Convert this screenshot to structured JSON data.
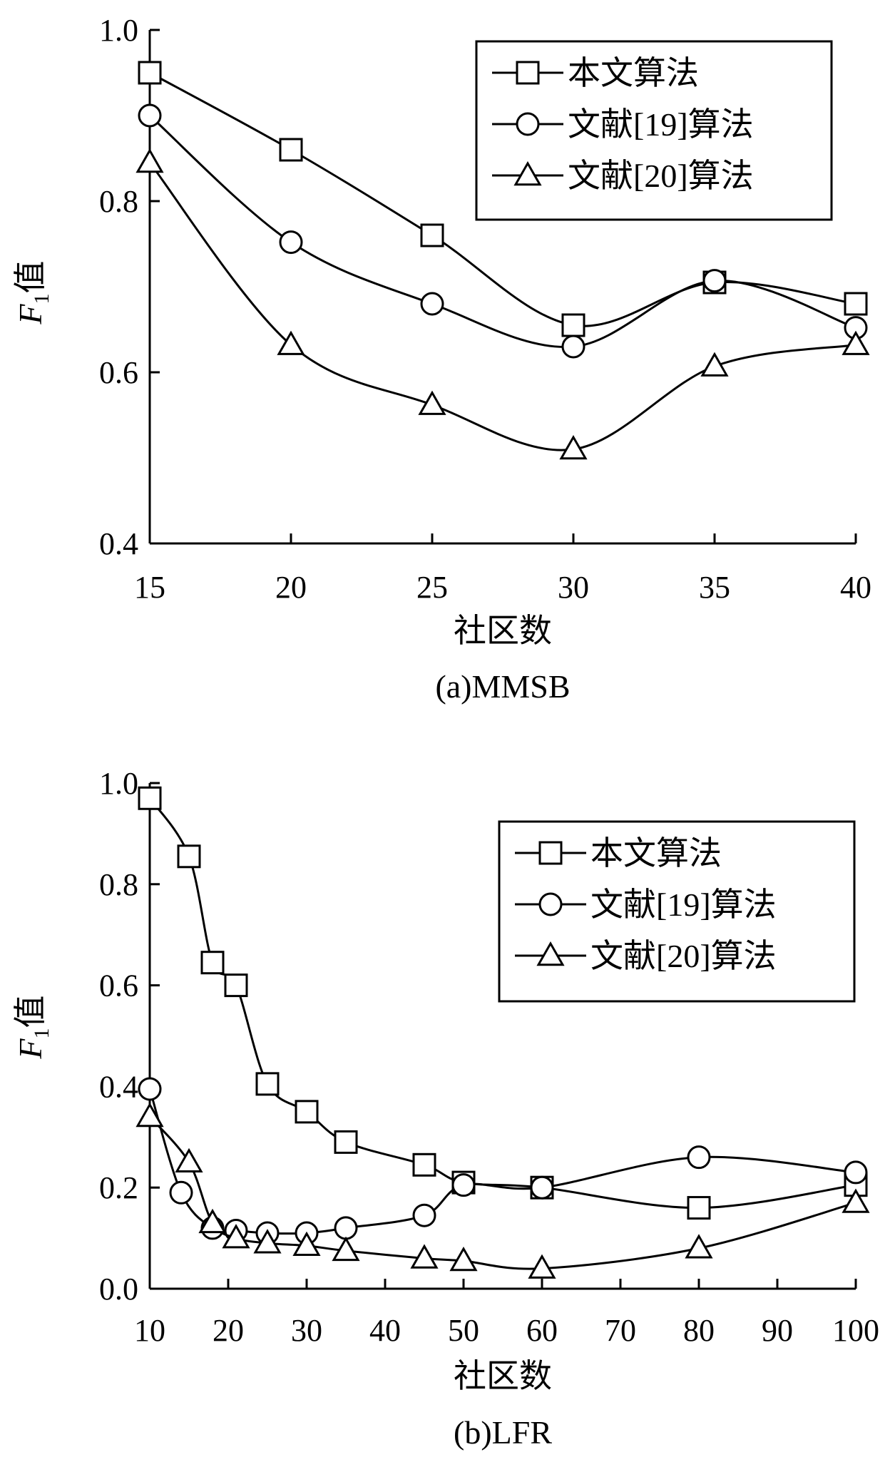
{
  "chart_data": [
    {
      "type": "line",
      "caption": "(a)MMSB",
      "xlabel": "社区数",
      "ylabel_main": "F",
      "ylabel_sub": "1",
      "ylabel_suffix": "值",
      "xlim": [
        15,
        40
      ],
      "ylim": [
        0.4,
        1.0
      ],
      "x_ticks": [
        15,
        20,
        25,
        30,
        35,
        40
      ],
      "x_tick_labels": [
        "15",
        "20",
        "25",
        "30",
        "35",
        "40"
      ],
      "y_ticks": [
        0.4,
        0.6,
        0.8,
        1.0
      ],
      "y_tick_labels": [
        "0.4",
        "0.6",
        "0.8",
        "1.0"
      ],
      "legend_position": "top-right",
      "series": [
        {
          "name": "本文算法",
          "marker": "square",
          "x": [
            15,
            20,
            25,
            30,
            35,
            40
          ],
          "y": [
            0.95,
            0.86,
            0.76,
            0.655,
            0.705,
            0.68
          ]
        },
        {
          "name": "文献[19]算法",
          "marker": "circle",
          "x": [
            15,
            20,
            25,
            30,
            35,
            40
          ],
          "y": [
            0.9,
            0.752,
            0.68,
            0.63,
            0.707,
            0.652
          ]
        },
        {
          "name": "文献[20]算法",
          "marker": "triangle",
          "x": [
            15,
            20,
            25,
            30,
            35,
            40
          ],
          "y": [
            0.845,
            0.632,
            0.562,
            0.51,
            0.607,
            0.632
          ]
        }
      ]
    },
    {
      "type": "line",
      "caption": "(b)LFR",
      "xlabel": "社区数",
      "ylabel_main": "F",
      "ylabel_sub": "1",
      "ylabel_suffix": "值",
      "xlim": [
        10,
        100
      ],
      "ylim": [
        0.0,
        1.0
      ],
      "x_ticks": [
        10,
        20,
        30,
        40,
        50,
        60,
        70,
        80,
        90,
        100
      ],
      "x_tick_labels": [
        "10",
        "20",
        "30",
        "40",
        "50",
        "60",
        "70",
        "80",
        "90",
        "100"
      ],
      "y_ticks": [
        0.0,
        0.2,
        0.4,
        0.6,
        0.8,
        1.0
      ],
      "y_tick_labels": [
        "0.0",
        "0.2",
        "0.4",
        "0.6",
        "0.8",
        "1.0"
      ],
      "legend_position": "top-right",
      "series": [
        {
          "name": "本文算法",
          "marker": "square",
          "x": [
            10,
            15,
            18,
            21,
            25,
            30,
            35,
            45,
            50,
            60,
            80,
            100
          ],
          "y": [
            0.97,
            0.855,
            0.645,
            0.6,
            0.405,
            0.35,
            0.29,
            0.245,
            0.21,
            0.2,
            0.16,
            0.205
          ]
        },
        {
          "name": "文献[19]算法",
          "marker": "circle",
          "x": [
            10,
            14,
            18,
            21,
            25,
            30,
            35,
            45,
            50,
            60,
            80,
            100
          ],
          "y": [
            0.395,
            0.19,
            0.12,
            0.115,
            0.11,
            0.11,
            0.12,
            0.145,
            0.205,
            0.2,
            0.26,
            0.23
          ]
        },
        {
          "name": "文献[20]算法",
          "marker": "triangle",
          "x": [
            10,
            15,
            18,
            21,
            25,
            30,
            35,
            45,
            50,
            60,
            80,
            100
          ],
          "y": [
            0.34,
            0.25,
            0.13,
            0.1,
            0.09,
            0.085,
            0.075,
            0.06,
            0.055,
            0.04,
            0.08,
            0.17
          ]
        }
      ]
    }
  ]
}
